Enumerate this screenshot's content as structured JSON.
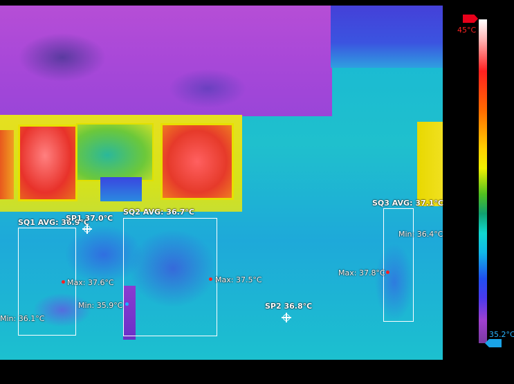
{
  "measurements": {
    "sq1": {
      "avg": "SQ1 AVG: 36.9°C",
      "max": "Max: 37.6°C",
      "min": "Min: 36.1°C"
    },
    "sq2": {
      "avg": "SQ2 AVG: 36.7°C",
      "max": "Max: 37.5°C",
      "min": "Min: 35.9°C"
    },
    "sq3": {
      "avg": "SQ3 AVG: 37.1°C",
      "max": "Max: 37.8°C",
      "min": "Min: 36.4°C"
    },
    "sp1": "SP1 37.0°C",
    "sp2": "SP2 36.8°C"
  },
  "scale": {
    "max_label": "45°C",
    "min_label": "35.2°C",
    "max_color": "#ff2020",
    "min_color": "#2ab4ff",
    "palette": "iron-rainbow"
  },
  "icons": {
    "spot_marker": "crosshair-icon",
    "max_marker": "red-dot-icon",
    "min_marker": "blue-dot-icon",
    "max_arrow": "arrow-right-icon",
    "min_arrow": "arrow-left-icon"
  }
}
